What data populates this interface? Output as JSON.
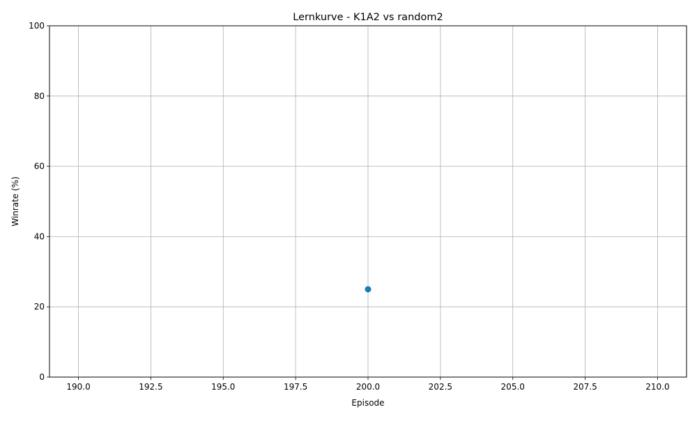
{
  "chart_data": {
    "type": "scatter",
    "title": "Lernkurve - K1A2 vs random2",
    "xlabel": "Episode",
    "ylabel": "Winrate (%)",
    "xlim": [
      189,
      211
    ],
    "ylim": [
      0,
      100
    ],
    "x_ticks": [
      190.0,
      192.5,
      195.0,
      197.5,
      200.0,
      202.5,
      205.0,
      207.5,
      210.0
    ],
    "x_tick_labels": [
      "190.0",
      "192.5",
      "195.0",
      "197.5",
      "200.0",
      "202.5",
      "205.0",
      "207.5",
      "210.0"
    ],
    "y_ticks": [
      0,
      20,
      40,
      60,
      80,
      100
    ],
    "y_tick_labels": [
      "0",
      "20",
      "40",
      "60",
      "80",
      "100"
    ],
    "grid": true,
    "series": [
      {
        "x": [
          200
        ],
        "y": [
          25
        ],
        "color": "#1f77b4",
        "marker": "circle-with-line"
      }
    ]
  }
}
